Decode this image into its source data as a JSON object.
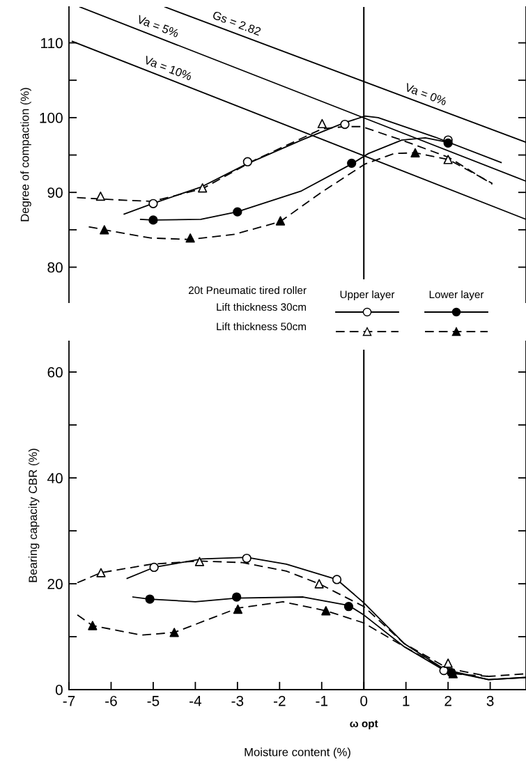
{
  "chart_data": [
    {
      "type": "line",
      "ylabel": "Degree of compaction (%)",
      "xlim": [
        -7,
        3.85
      ],
      "ylim": [
        75.3,
        114.8
      ],
      "yticks": [
        80,
        {
          "value": 85,
          "label": null
        },
        90,
        {
          "value": 95,
          "label": null
        },
        100,
        {
          "value": 105,
          "label": null
        },
        110
      ],
      "tick_labels": "y",
      "legend_title": "20t Pneumatic tired roller",
      "annotations": [
        "Upper layer",
        "Lower layer",
        "Lift thickness 30cm",
        "Lift thickness 50cm",
        {
          "text": "Gs = 2.82",
          "x": -3.07,
          "y": 111.3
        },
        {
          "text": "Va = 5%",
          "x": -4.94,
          "y": 110.9
        },
        {
          "text": "Va = 10%",
          "x": -4.7,
          "y": 105.3
        },
        {
          "text": "Va = 0%",
          "x": 1.42,
          "y": 101.8
        }
      ],
      "ref_lines": [
        {
          "axis": "x",
          "value": 0
        }
      ],
      "series": [
        {
          "color": "#000000",
          "line_style": "solid",
          "x": [
            -4.72,
            3.85
          ],
          "values": [
            114.8,
            96.7
          ]
        },
        {
          "color": "#000000",
          "line_style": "solid",
          "x": [
            -6.74,
            3.85
          ],
          "values": [
            114.8,
            91.5
          ]
        },
        {
          "color": "#000000",
          "line_style": "solid",
          "x": [
            -6.92,
            3.85
          ],
          "values": [
            110.2,
            86.4
          ]
        },
        {
          "type": "scatter",
          "marker": "circle",
          "color": "#ffffff",
          "x": [
            -5.0,
            -2.76,
            -0.45,
            2.0
          ],
          "values": [
            88.5,
            94.1,
            99.1,
            97.0
          ]
        },
        {
          "color": "#000000",
          "line_style": "solid",
          "x": [
            -5.69,
            -5.02,
            -3.87,
            -2.78,
            -1.48,
            -0.47,
            0.03,
            0.34,
            1.69,
            3.26
          ],
          "values": [
            87.1,
            88.5,
            90.7,
            93.8,
            97.0,
            99.3,
            100.2,
            100.0,
            97.4,
            94.0
          ]
        },
        {
          "type": "scatter",
          "marker": "triangle",
          "color": "#ffffff",
          "x": [
            -6.25,
            -3.83,
            -0.99,
            2.0
          ],
          "values": [
            89.5,
            90.6,
            99.2,
            94.4
          ]
        },
        {
          "color": "#000000",
          "line_style": "dashed",
          "x": [
            -6.81,
            -5.85,
            -5.02,
            -3.83,
            -2.6,
            -0.99,
            -0.45,
            -0.05,
            0.9,
            2.01,
            3.05
          ],
          "values": [
            89.3,
            89.0,
            88.8,
            90.5,
            94.3,
            98.5,
            98.8,
            98.8,
            97.0,
            94.7,
            91.1
          ]
        },
        {
          "type": "scatter",
          "marker": "circle",
          "color": "#000000",
          "x": [
            -5.0,
            -3.0,
            -0.29,
            2.0
          ],
          "values": [
            86.3,
            87.4,
            93.9,
            96.6
          ]
        },
        {
          "color": "#000000",
          "line_style": "solid",
          "x": [
            -5.3,
            -5.0,
            -3.87,
            -3.01,
            -1.48,
            -0.29,
            0.11,
            0.9,
            1.46,
            1.99
          ],
          "values": [
            86.4,
            86.3,
            86.4,
            87.4,
            90.2,
            93.8,
            95.2,
            97.0,
            97.3,
            96.7
          ]
        },
        {
          "type": "scatter",
          "marker": "triangle",
          "color": "#000000",
          "x": [
            -6.16,
            -4.12,
            -1.98,
            1.22
          ],
          "values": [
            85.0,
            83.9,
            86.2,
            95.3
          ]
        },
        {
          "color": "#000000",
          "line_style": "dashed",
          "x": [
            -6.53,
            -6.16,
            -5.06,
            -4.12,
            -3.07,
            -1.98,
            -1.01,
            0.03,
            0.72,
            1.22,
            2.01,
            3.05
          ],
          "values": [
            85.4,
            85.0,
            83.9,
            83.7,
            84.4,
            86.1,
            90.0,
            93.8,
            95.2,
            95.3,
            94.4,
            91.2
          ]
        }
      ]
    },
    {
      "type": "line",
      "xlabel": "Moisture content (%)",
      "ylabel": "Bearing capacity CBR (%)",
      "xlim": [
        -7,
        3.85
      ],
      "ylim": [
        0,
        65.8
      ],
      "xticks": [
        -7,
        -6,
        -5,
        -4,
        -3,
        -2,
        -1,
        0,
        1,
        2,
        3
      ],
      "yticks": [
        0,
        {
          "value": 10,
          "label": null
        },
        20,
        {
          "value": 30,
          "label": null
        },
        40,
        {
          "value": 50,
          "label": null
        },
        60
      ],
      "ref_lines": [
        {
          "axis": "x",
          "value": 0,
          "label": "ω opt"
        }
      ],
      "series": [
        {
          "type": "scatter",
          "marker": "circle",
          "color": "#ffffff",
          "x": [
            -4.98,
            -2.78,
            -0.64,
            1.9
          ],
          "values": [
            23.1,
            24.8,
            20.8,
            3.6
          ]
        },
        {
          "color": "#000000",
          "line_style": "solid",
          "x": [
            -5.62,
            -4.98,
            -3.84,
            -2.78,
            -1.84,
            -0.64,
            0.0,
            0.96,
            1.92,
            2.96,
            3.85
          ],
          "values": [
            21.0,
            23.1,
            24.7,
            25.0,
            23.7,
            20.8,
            16.4,
            8.7,
            3.8,
            1.9,
            2.3
          ]
        },
        {
          "type": "scatter",
          "marker": "triangle",
          "color": "#ffffff",
          "x": [
            -6.24,
            -3.9,
            -1.06,
            2.0
          ],
          "values": [
            22.1,
            24.2,
            20.0,
            5.0
          ]
        },
        {
          "color": "#000000",
          "line_style": "dashed",
          "x": [
            -6.8,
            -6.24,
            -5.04,
            -3.9,
            -2.88,
            -1.84,
            -1.06,
            0.0,
            0.96,
            2.0,
            2.96,
            3.85
          ],
          "values": [
            20.2,
            22.1,
            23.7,
            24.3,
            24.0,
            22.4,
            20.0,
            15.7,
            8.7,
            4.0,
            2.5,
            3.0
          ]
        },
        {
          "type": "scatter",
          "marker": "circle",
          "color": "#000000",
          "x": [
            -5.08,
            -3.02,
            -0.36,
            2.08
          ],
          "values": [
            17.1,
            17.5,
            15.7,
            3.2
          ]
        },
        {
          "color": "#000000",
          "line_style": "solid",
          "x": [
            -5.48,
            -5.08,
            -4.0,
            -3.02,
            -1.44,
            -0.36,
            0.0,
            0.96,
            1.92,
            2.96,
            3.85
          ],
          "values": [
            17.5,
            17.1,
            16.6,
            17.3,
            17.5,
            15.9,
            14.1,
            8.1,
            3.6,
            1.9,
            2.3
          ]
        },
        {
          "type": "scatter",
          "marker": "triangle",
          "color": "#000000",
          "x": [
            -6.44,
            -4.5,
            -2.99,
            -0.9,
            2.12
          ],
          "values": [
            12.1,
            10.8,
            15.2,
            14.9,
            3.0
          ]
        },
        {
          "color": "#000000",
          "line_style": "dashed",
          "x": [
            -6.8,
            -6.44,
            -5.28,
            -4.5,
            -2.99,
            -1.92,
            -0.9,
            0.0,
            0.96,
            2.12,
            2.96
          ],
          "values": [
            14.1,
            12.1,
            10.3,
            10.8,
            15.4,
            16.6,
            14.9,
            12.6,
            8.1,
            3.0,
            2.5
          ]
        }
      ]
    }
  ]
}
